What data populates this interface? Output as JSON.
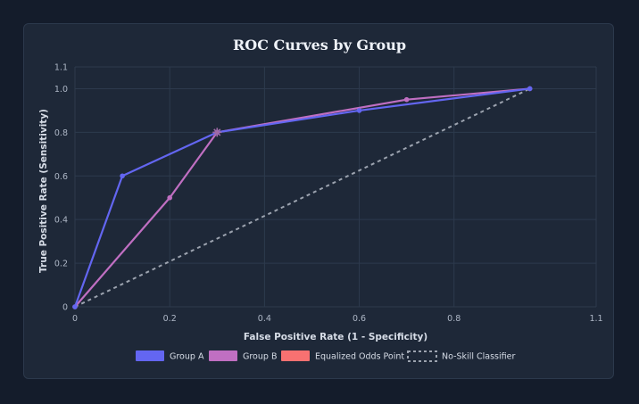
{
  "chart_data": {
    "type": "line",
    "title": "ROC Curves by Group",
    "xlabel": "False Positive Rate (1 - Specificity)",
    "ylabel": "True Positive Rate (Sensitivity)",
    "xlim": [
      0,
      1.1
    ],
    "ylim": [
      0,
      1.1
    ],
    "x_ticks": [
      "0",
      "0.2",
      "0.4",
      "0.6",
      "0.8",
      "1.1"
    ],
    "y_ticks": [
      "0",
      "0.2",
      "0.4",
      "0.6",
      "0.8",
      "1.0",
      "1.1"
    ],
    "grid": true,
    "legend_position": "bottom",
    "series": [
      {
        "name": "Group A",
        "color": "#6366f1",
        "points": [
          [
            0,
            0
          ],
          [
            0.1,
            0.6
          ],
          [
            0.3,
            0.8
          ],
          [
            0.6,
            0.9
          ],
          [
            0.96,
            1.0
          ]
        ]
      },
      {
        "name": "Group B",
        "color": "#c06fc2",
        "points": [
          [
            0,
            0
          ],
          [
            0.2,
            0.5
          ],
          [
            0.3,
            0.8
          ],
          [
            0.7,
            0.95
          ],
          [
            0.96,
            1.0
          ]
        ]
      },
      {
        "name": "Equalized Odds Point",
        "color": "#f87171",
        "points": [
          [
            0.3,
            0.8
          ]
        ]
      },
      {
        "name": "No-Skill Classifier",
        "color": "#9ca3af",
        "dashed": true,
        "points": [
          [
            0,
            0
          ],
          [
            0.96,
            1.0
          ]
        ]
      }
    ]
  }
}
